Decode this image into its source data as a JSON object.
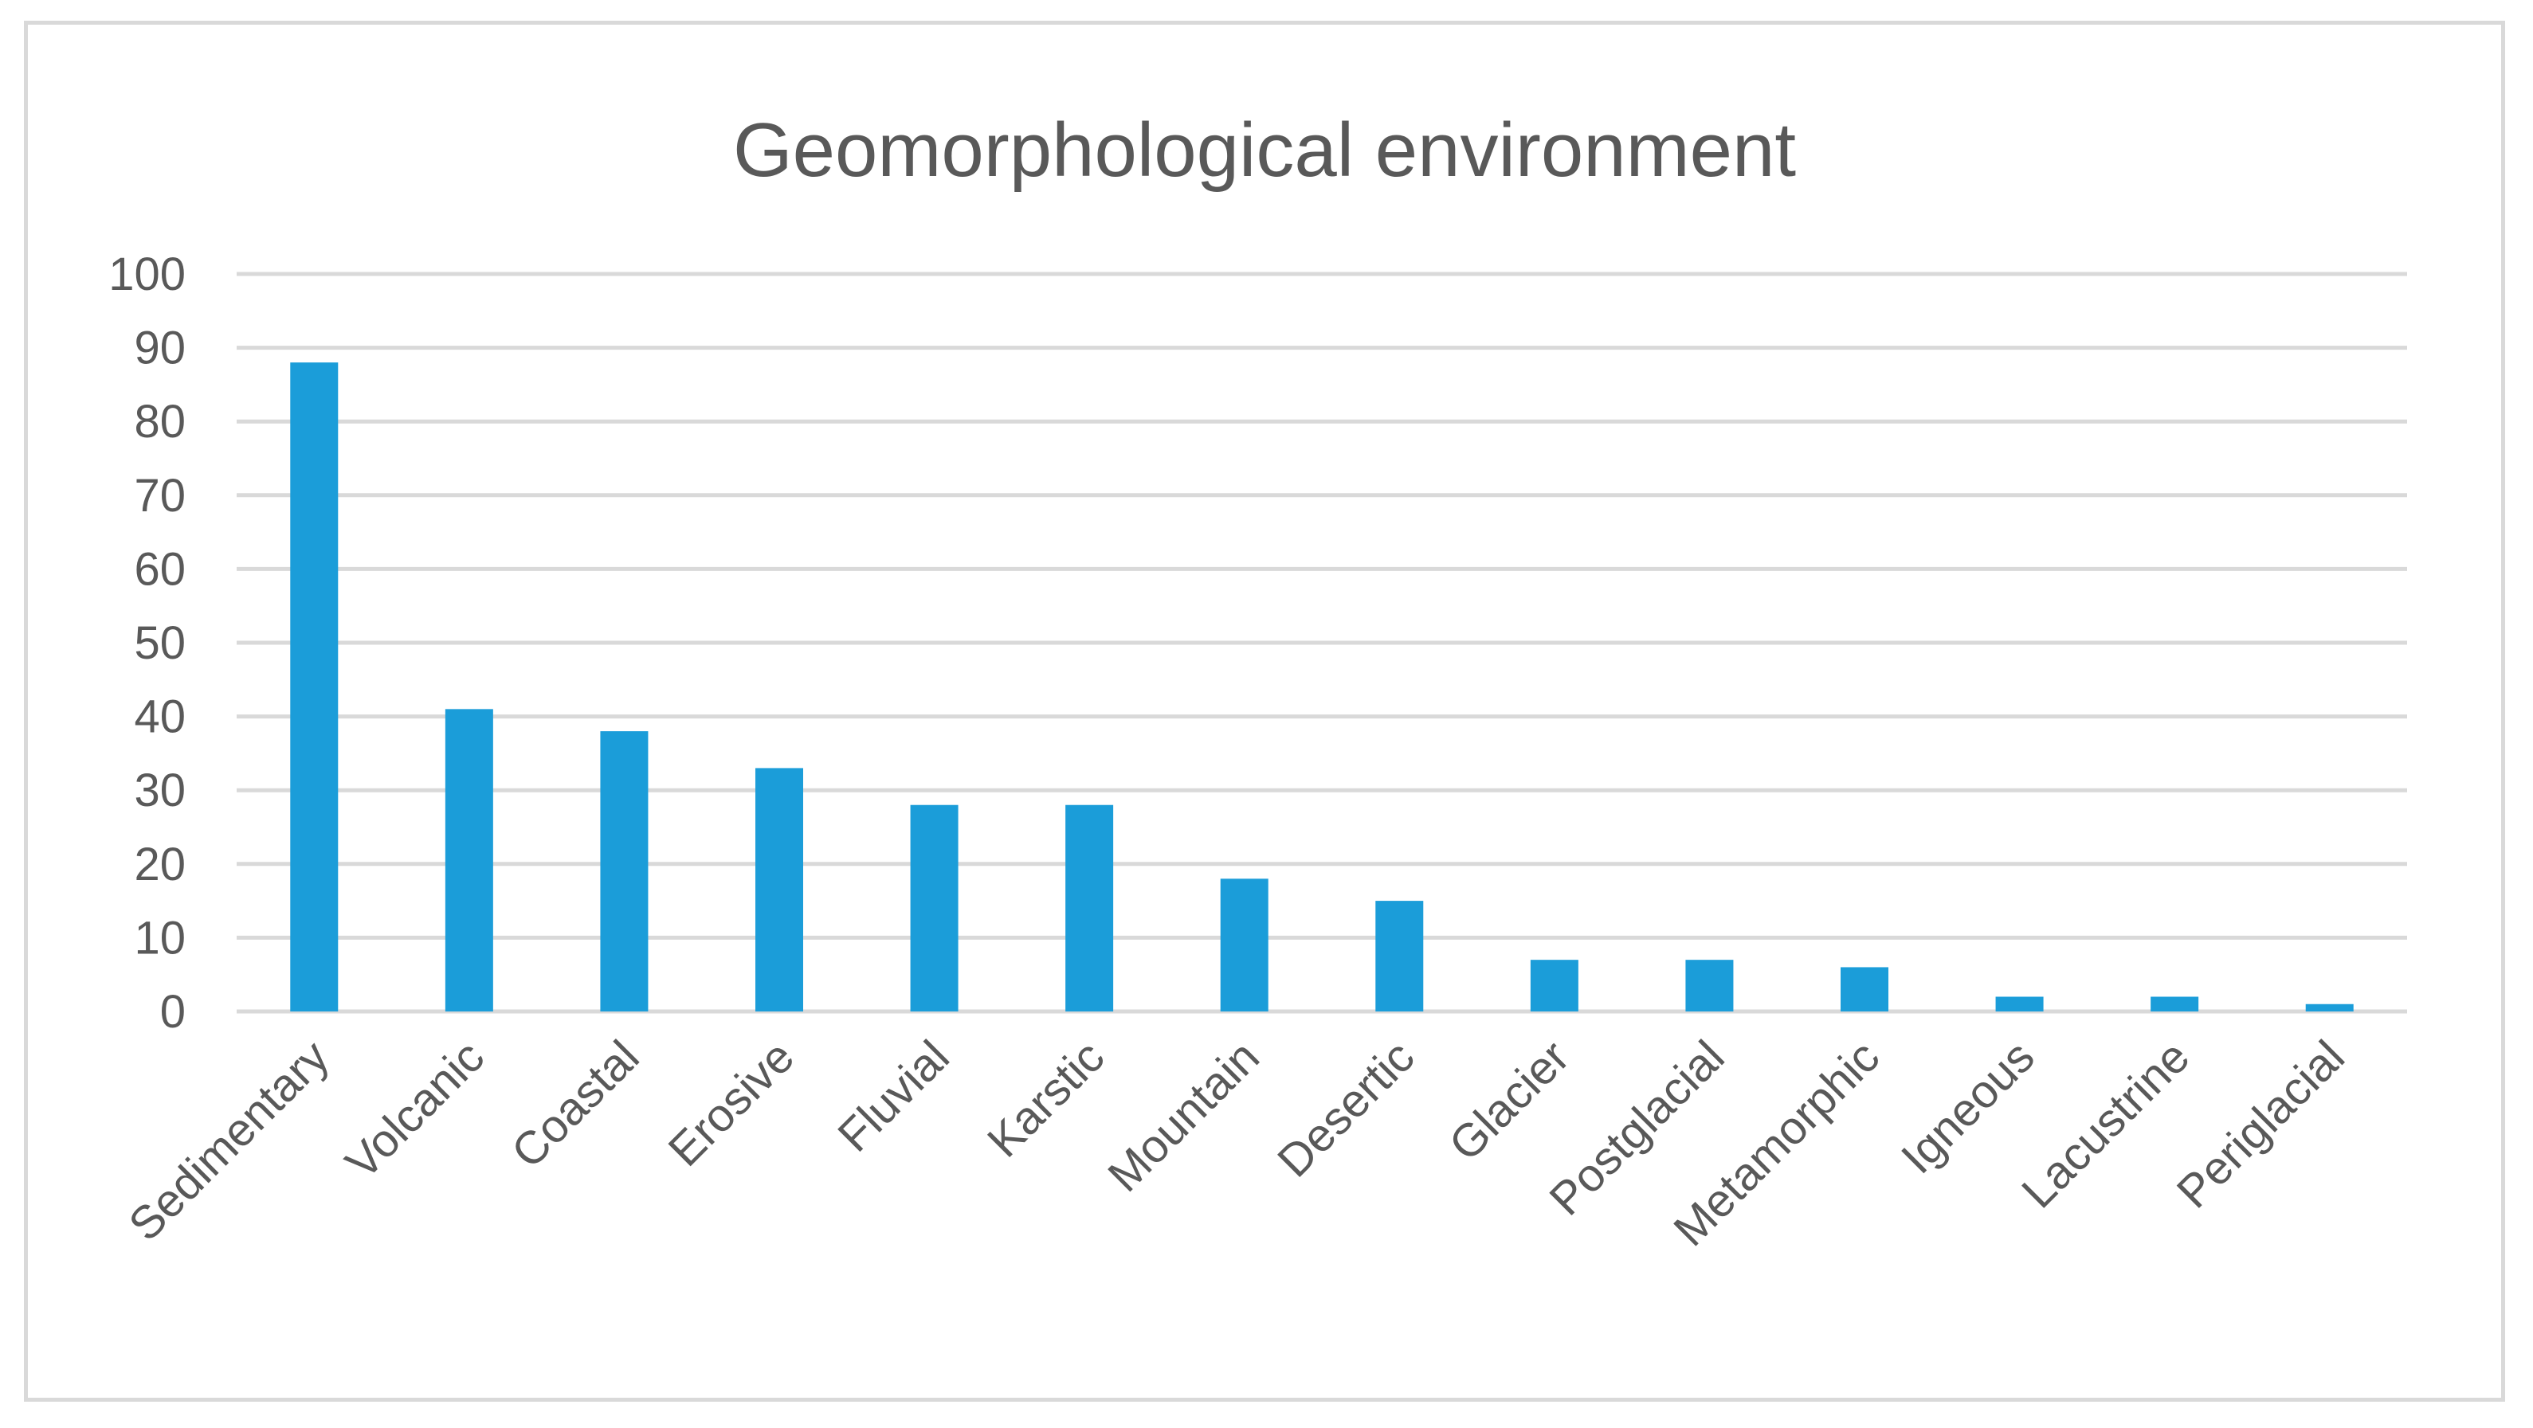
{
  "chart_data": {
    "type": "bar",
    "title": "Geomorphological environment",
    "xlabel": "",
    "ylabel": "",
    "categories": [
      "Sedimentary",
      "Volcanic",
      "Coastal",
      "Erosive",
      "Fluvial",
      "Karstic",
      "Mountain",
      "Desertic",
      "Glacier",
      "Postglacial",
      "Metamorphic",
      "Igneous",
      "Lacustrine",
      "Periglacial"
    ],
    "values": [
      88,
      41,
      38,
      33,
      28,
      28,
      18,
      15,
      7,
      7,
      6,
      2,
      2,
      1
    ],
    "ylim": [
      0,
      100
    ],
    "yticks": [
      "0",
      "10",
      "20",
      "30",
      "40",
      "50",
      "60",
      "70",
      "80",
      "90",
      "100"
    ],
    "grid": true,
    "legend": "none",
    "bar_color": "#1b9dd9"
  }
}
